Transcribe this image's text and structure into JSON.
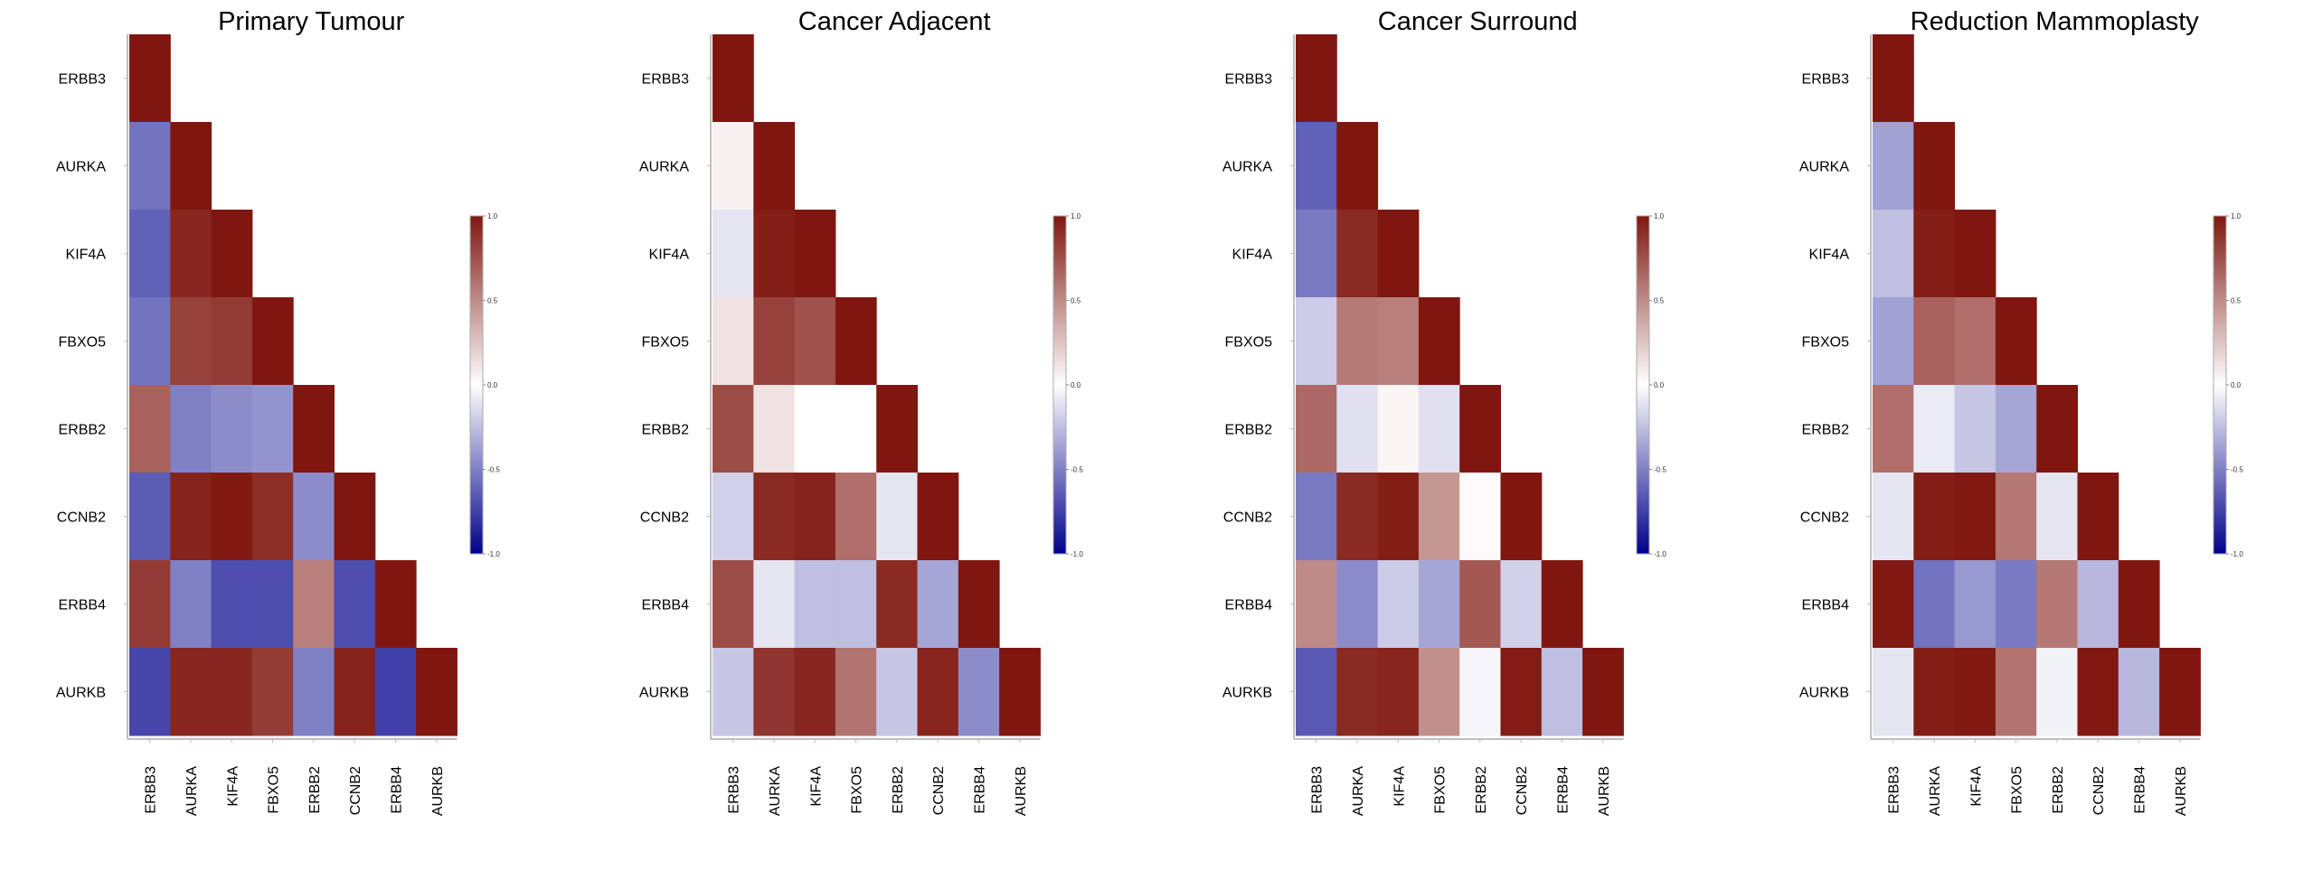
{
  "chart_data": [
    {
      "type": "heatmap",
      "title": "Primary Tumour",
      "genes": [
        "ERBB3",
        "AURKA",
        "KIF4A",
        "FBXO5",
        "ERBB2",
        "CCNB2",
        "ERBB4",
        "AURKB"
      ],
      "triangle": "lower",
      "values": [
        [
          1.0
        ],
        [
          -0.55,
          1.0
        ],
        [
          -0.62,
          0.93,
          1.0
        ],
        [
          -0.55,
          0.82,
          0.85,
          1.0
        ],
        [
          0.68,
          -0.5,
          -0.45,
          -0.42,
          1.0
        ],
        [
          -0.64,
          0.95,
          0.99,
          0.9,
          -0.45,
          1.0
        ],
        [
          0.84,
          -0.5,
          -0.7,
          -0.7,
          0.55,
          -0.7,
          1.0
        ],
        [
          -0.72,
          0.93,
          0.93,
          0.84,
          -0.5,
          0.95,
          -0.75,
          1.0
        ]
      ],
      "colorbar": {
        "min": -1.0,
        "max": 1.0,
        "ticks": [
          "1.0",
          "0.5",
          "0.0",
          "-0.5",
          "-1.0"
        ]
      },
      "colors": {
        "low": "#00008b",
        "mid": "#ffffff",
        "high": "#7f1710"
      }
    },
    {
      "type": "heatmap",
      "title": "Cancer Adjacent",
      "genes": [
        "ERBB3",
        "AURKA",
        "KIF4A",
        "FBXO5",
        "ERBB2",
        "CCNB2",
        "ERBB4",
        "AURKB"
      ],
      "triangle": "lower",
      "values": [
        [
          1.0
        ],
        [
          0.06,
          1.0
        ],
        [
          -0.1,
          0.97,
          1.0
        ],
        [
          0.12,
          0.82,
          0.75,
          1.0
        ],
        [
          0.77,
          0.12,
          0.0,
          0.0,
          1.0
        ],
        [
          -0.18,
          0.92,
          0.95,
          0.62,
          -0.1,
          1.0
        ],
        [
          0.77,
          -0.1,
          -0.25,
          -0.25,
          0.92,
          -0.35,
          1.0
        ],
        [
          -0.22,
          0.87,
          0.93,
          0.6,
          -0.22,
          0.94,
          -0.45,
          1.0
        ]
      ],
      "colorbar": {
        "min": -1.0,
        "max": 1.0,
        "ticks": [
          "1.0",
          "0.5",
          "0.0",
          "-0.5",
          "-1.0"
        ]
      },
      "colors": {
        "low": "#00008b",
        "mid": "#ffffff",
        "high": "#7f1710"
      }
    },
    {
      "type": "heatmap",
      "title": "Cancer Surround",
      "genes": [
        "ERBB3",
        "AURKA",
        "KIF4A",
        "FBXO5",
        "ERBB2",
        "CCNB2",
        "ERBB4",
        "AURKB"
      ],
      "triangle": "lower",
      "values": [
        [
          1.0
        ],
        [
          -0.62,
          1.0
        ],
        [
          -0.52,
          0.92,
          1.0
        ],
        [
          -0.2,
          0.57,
          0.55,
          1.0
        ],
        [
          0.65,
          -0.12,
          0.04,
          -0.12,
          1.0
        ],
        [
          -0.52,
          0.92,
          0.97,
          0.45,
          0.02,
          1.0
        ],
        [
          0.5,
          -0.45,
          -0.2,
          -0.35,
          0.72,
          -0.18,
          1.0
        ],
        [
          -0.65,
          0.92,
          0.94,
          0.48,
          -0.04,
          0.98,
          -0.25,
          1.0
        ]
      ],
      "colorbar": {
        "min": -1.0,
        "max": 1.0,
        "ticks": [
          "1.0",
          "0.5",
          "0.0",
          "-0.5",
          "-1.0"
        ]
      },
      "colors": {
        "low": "#00008b",
        "mid": "#ffffff",
        "high": "#7f1710"
      }
    },
    {
      "type": "heatmap",
      "title": "Reduction Mammoplasty",
      "genes": [
        "ERBB3",
        "AURKA",
        "KIF4A",
        "FBXO5",
        "ERBB2",
        "CCNB2",
        "ERBB4",
        "AURKB"
      ],
      "triangle": "lower",
      "values": [
        [
          1.0
        ],
        [
          -0.37,
          1.0
        ],
        [
          -0.25,
          0.97,
          1.0
        ],
        [
          -0.37,
          0.68,
          0.62,
          1.0
        ],
        [
          0.62,
          -0.08,
          -0.22,
          -0.35,
          1.0
        ],
        [
          -0.1,
          0.97,
          0.99,
          0.58,
          -0.1,
          1.0
        ],
        [
          0.99,
          -0.55,
          -0.4,
          -0.52,
          0.58,
          -0.28,
          1.0
        ],
        [
          -0.1,
          0.97,
          0.99,
          0.6,
          -0.05,
          0.99,
          -0.28,
          1.0
        ]
      ],
      "colorbar": {
        "min": -1.0,
        "max": 1.0,
        "ticks": [
          "1.0",
          "0.5",
          "0.0",
          "-0.5",
          "-1.0"
        ]
      },
      "colors": {
        "low": "#00008b",
        "mid": "#ffffff",
        "high": "#7f1710"
      }
    }
  ]
}
